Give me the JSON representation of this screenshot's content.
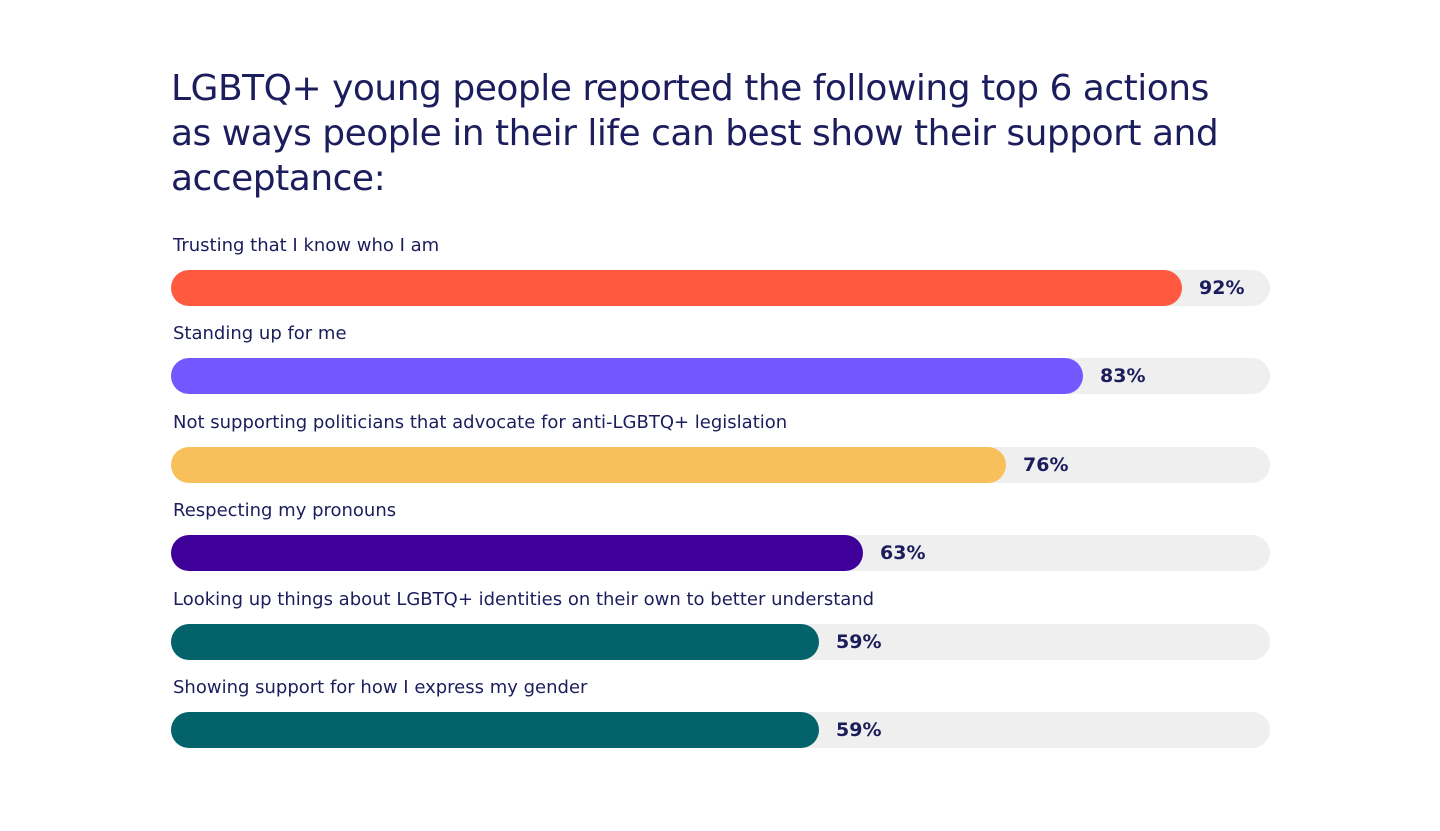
{
  "chart_data": {
    "type": "bar",
    "orientation": "horizontal",
    "title": "LGBTQ+ young people reported the following top 6 actions as ways people in their life can best show their support and acceptance:",
    "xlim": [
      0,
      100
    ],
    "grid": false,
    "legend": "none",
    "categories": [
      "Trusting that I know who I am",
      "Standing up for me",
      "Not supporting politicians that advocate for anti-LGBTQ+ legislation",
      "Respecting my pronouns",
      "Looking up things about LGBTQ+ identities on their own to better understand",
      "Showing support for how I express my gender"
    ],
    "values": [
      92,
      83,
      76,
      63,
      59,
      59
    ],
    "value_labels": [
      "92%",
      "83%",
      "76%",
      "63%",
      "59%",
      "59%"
    ],
    "colors": [
      "#ff5a3f",
      "#7357ff",
      "#f8c05a",
      "#3f0099",
      "#03626a",
      "#03626a"
    ],
    "track_color": "#efefef"
  }
}
